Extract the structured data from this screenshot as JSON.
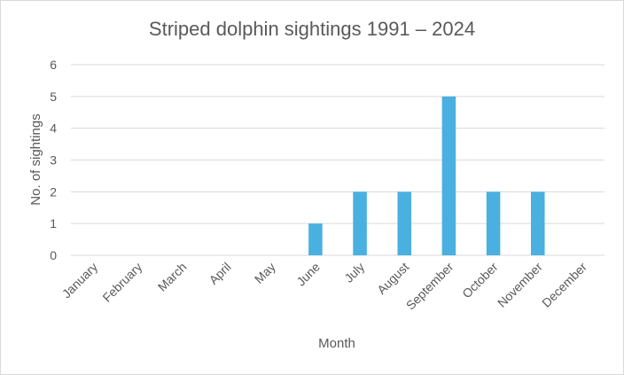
{
  "chart_data": {
    "type": "bar",
    "title": "Striped dolphin sightings 1991 – 2024",
    "xlabel": "Month",
    "ylabel": "No. of sightings",
    "categories": [
      "January",
      "February",
      "March",
      "April",
      "May",
      "June",
      "July",
      "August",
      "September",
      "October",
      "November",
      "December"
    ],
    "values": [
      0,
      0,
      0,
      0,
      0,
      1,
      2,
      2,
      5,
      2,
      2,
      0
    ],
    "ylim": [
      0,
      6
    ],
    "yticks": [
      "0",
      "1",
      "2",
      "3",
      "4",
      "5",
      "6"
    ],
    "grid": true,
    "legend": "none",
    "colors": {
      "bar": "#4ab0e0",
      "grid": "#d9d9d9",
      "text": "#595959"
    }
  }
}
